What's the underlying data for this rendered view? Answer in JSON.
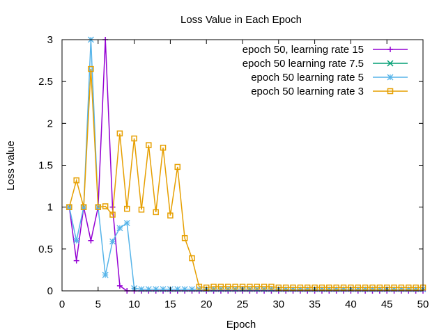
{
  "chart_data": {
    "type": "line",
    "title": "Loss Value in Each Epoch",
    "xlabel": "Epoch",
    "ylabel": "Loss value",
    "xlim": [
      0,
      50
    ],
    "ylim": [
      0,
      3
    ],
    "xticks": [
      "0",
      "5",
      "10",
      "15",
      "20",
      "25",
      "30",
      "35",
      "40",
      "45",
      "50"
    ],
    "yticks": [
      "0",
      "0.5",
      "1",
      "1.5",
      "2",
      "2.5",
      "3"
    ],
    "grid": false,
    "legend_position": "top-right",
    "series": [
      {
        "name": "epoch 50, learning rate 15",
        "color": "#9400d3",
        "marker": "plus",
        "x": [
          1,
          2,
          3,
          4,
          5,
          6,
          7,
          8,
          9,
          10,
          11,
          12,
          13,
          14,
          15,
          16,
          17,
          18,
          19,
          20,
          21,
          22,
          23,
          24,
          25,
          26,
          27,
          28,
          29,
          30,
          31,
          32,
          33,
          34,
          35,
          36,
          37,
          38,
          39,
          40,
          41,
          42,
          43,
          44,
          45,
          46,
          47,
          48,
          49,
          50
        ],
        "values": [
          1.0,
          0.36,
          1.0,
          0.6,
          1.0,
          3.0,
          1.0,
          0.06,
          0,
          0,
          0,
          0,
          0,
          0,
          0,
          0,
          0,
          0,
          0,
          0,
          0,
          0,
          0,
          0,
          0,
          0,
          0,
          0,
          0,
          0,
          0,
          0,
          0,
          0,
          0,
          0,
          0,
          0,
          0,
          0,
          0,
          0,
          0,
          0,
          0,
          0,
          0,
          0,
          0,
          0
        ]
      },
      {
        "name": "epoch 50 learning rate 7.5",
        "color": "#009e73",
        "marker": "cross",
        "x": [],
        "values": []
      },
      {
        "name": "epoch 50 learning rate 5",
        "color": "#56b4e9",
        "marker": "star",
        "x": [
          1,
          2,
          3,
          4,
          5,
          6,
          7,
          8,
          9,
          10,
          11,
          12,
          13,
          14,
          15,
          16,
          17,
          18,
          19,
          20,
          21,
          22,
          23,
          24,
          25,
          26,
          27,
          28,
          29,
          30,
          31,
          32,
          33,
          34,
          35,
          36,
          37,
          38,
          39,
          40,
          41,
          42,
          43,
          44,
          45,
          46,
          47,
          48,
          49,
          50
        ],
        "values": [
          1.0,
          0.6,
          1.0,
          3.0,
          1.0,
          0.19,
          0.59,
          0.75,
          0.81,
          0.03,
          0.02,
          0.02,
          0.02,
          0.02,
          0.02,
          0.02,
          0.02,
          0.02,
          0.02,
          0.02,
          0.02,
          0.02,
          0.02,
          0.02,
          0.02,
          0.02,
          0.02,
          0.02,
          0.02,
          0.02,
          0.02,
          0.02,
          0.02,
          0.02,
          0.02,
          0.02,
          0.02,
          0.02,
          0.02,
          0.02,
          0.02,
          0.02,
          0.02,
          0.02,
          0.02,
          0.02,
          0.02,
          0.02,
          0.02,
          0.02
        ]
      },
      {
        "name": "epoch 50 learning rate 3",
        "color": "#e69f00",
        "marker": "square",
        "x": [
          1,
          2,
          3,
          4,
          5,
          6,
          7,
          8,
          9,
          10,
          11,
          12,
          13,
          14,
          15,
          16,
          17,
          18,
          19,
          20,
          21,
          22,
          23,
          24,
          25,
          26,
          27,
          28,
          29,
          30,
          31,
          32,
          33,
          34,
          35,
          36,
          37,
          38,
          39,
          40,
          41,
          42,
          43,
          44,
          45,
          46,
          47,
          48,
          49,
          50
        ],
        "values": [
          1.0,
          1.32,
          1.0,
          2.65,
          1.0,
          1.01,
          0.91,
          1.88,
          0.98,
          1.82,
          0.97,
          1.74,
          0.94,
          1.71,
          0.9,
          1.48,
          0.63,
          0.39,
          0.05,
          0.04,
          0.05,
          0.05,
          0.05,
          0.05,
          0.05,
          0.05,
          0.05,
          0.05,
          0.05,
          0.04,
          0.04,
          0.04,
          0.04,
          0.04,
          0.04,
          0.04,
          0.04,
          0.04,
          0.04,
          0.04,
          0.04,
          0.04,
          0.04,
          0.04,
          0.04,
          0.04,
          0.04,
          0.04,
          0.04,
          0.04
        ]
      }
    ]
  }
}
